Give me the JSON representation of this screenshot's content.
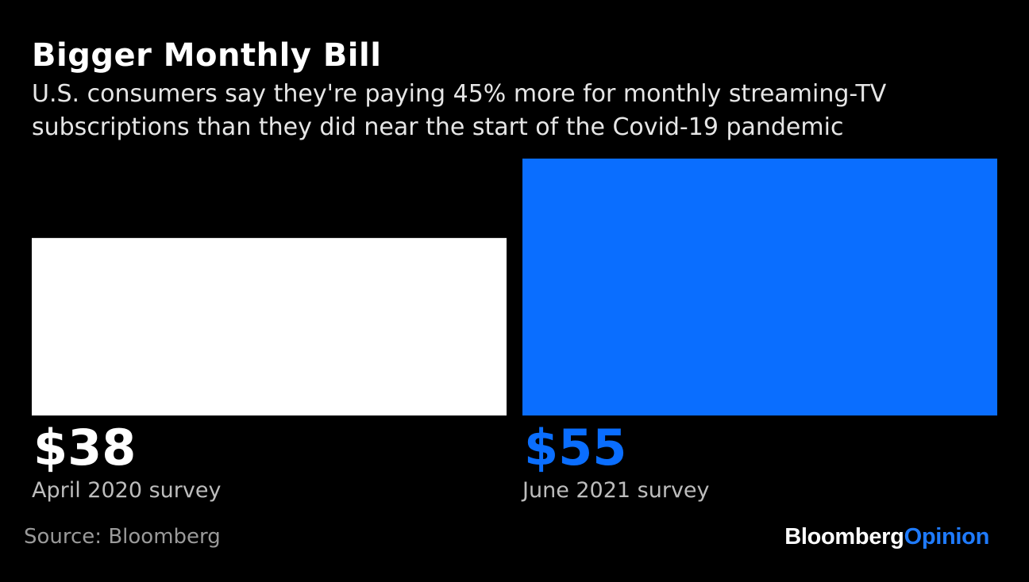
{
  "header": {
    "title": "Bigger Monthly Bill",
    "subtitle": "U.S. consumers say they're paying 45% more for monthly streaming-TV subscriptions than they did near the start of the Covid-19 pandemic"
  },
  "chart_data": {
    "type": "bar",
    "categories": [
      "April 2020 survey",
      "June 2021 survey"
    ],
    "values": [
      38,
      55
    ],
    "value_labels": [
      "$38",
      "$55"
    ],
    "colors": [
      "#ffffff",
      "#0a6eff"
    ],
    "label_colors": [
      "#ffffff",
      "#0a6eff"
    ],
    "ylim": [
      0,
      55
    ],
    "grid": false,
    "legend": "none"
  },
  "footer": {
    "source": "Source: Bloomberg",
    "brand_part1": "Bloomberg",
    "brand_part2": "Opinion"
  }
}
